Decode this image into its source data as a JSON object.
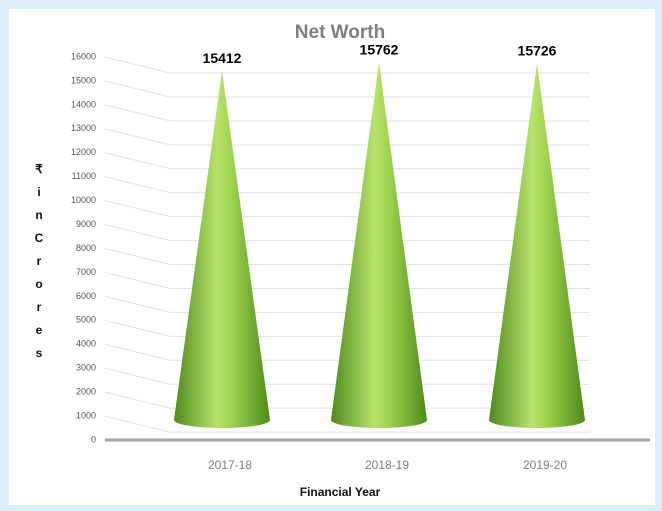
{
  "chart_data": {
    "type": "cone",
    "title": "Net Worth",
    "y_label": "₹ in Crores",
    "x_label": "Financial Year",
    "categories": [
      "2017-18",
      "2018-19",
      "2019-20"
    ],
    "values": [
      15412,
      15762,
      15726
    ],
    "color": "#8cc63f",
    "ylim": [
      0,
      16000
    ],
    "yticks": [
      0,
      1000,
      2000,
      3000,
      4000,
      5000,
      6000,
      7000,
      8000,
      9000,
      10000,
      11000,
      12000,
      13000,
      14000,
      15000,
      16000
    ],
    "grid": true
  }
}
